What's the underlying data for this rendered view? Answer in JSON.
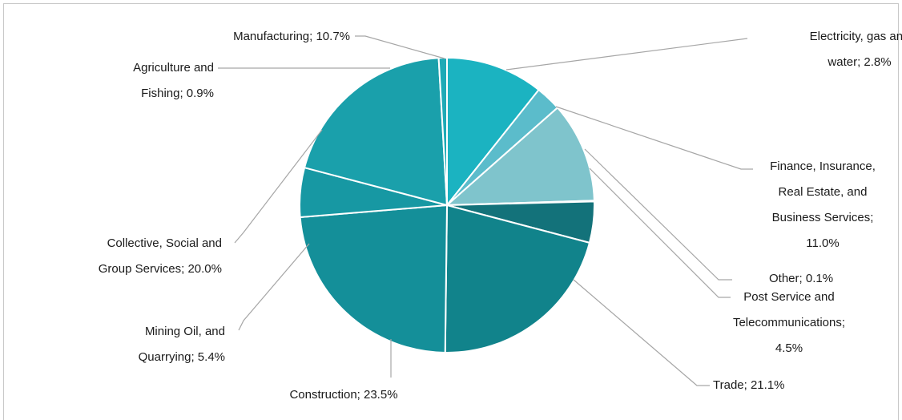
{
  "chart_data": {
    "type": "pie",
    "title": "",
    "slices": [
      {
        "name": "Manufacturing",
        "value": 10.7,
        "color": "#1bb3c1",
        "label_lines": [
          "Manufacturing; 10.7%"
        ]
      },
      {
        "name": "Electricity, gas and water",
        "value": 2.8,
        "color": "#5bbccb",
        "label_lines": [
          "Electricity, gas and",
          "water; 2.8%"
        ]
      },
      {
        "name": "Finance, Insurance, Real Estate, and Business Services",
        "value": 11.0,
        "color": "#7fc4cc",
        "label_lines": [
          "Finance, Insurance,",
          "Real Estate, and",
          "Business Services;",
          "11.0%"
        ]
      },
      {
        "name": "Other",
        "value": 0.1,
        "color": "#2a8f96",
        "label_lines": [
          "Other; 0.1%"
        ]
      },
      {
        "name": "Post Service and Telecommunications",
        "value": 4.5,
        "color": "#13727a",
        "label_lines": [
          "Post Service and",
          "Telecommunications;",
          "4.5%"
        ]
      },
      {
        "name": "Trade",
        "value": 21.1,
        "color": "#11838b",
        "label_lines": [
          "Trade; 21.1%"
        ]
      },
      {
        "name": "Construction",
        "value": 23.5,
        "color": "#148f99",
        "label_lines": [
          "Construction; 23.5%"
        ]
      },
      {
        "name": "Mining Oil, and Quarrying",
        "value": 5.4,
        "color": "#1798a3",
        "label_lines": [
          "Mining Oil, and",
          "Quarrying; 5.4%"
        ]
      },
      {
        "name": "Collective, Social and Group Services",
        "value": 20.0,
        "color": "#1aa0ab",
        "label_lines": [
          "Collective, Social and",
          "Group Services; 20.0%"
        ]
      },
      {
        "name": "Agriculture and Fishing",
        "value": 0.9,
        "color": "#1eaab6",
        "label_lines": [
          "Agriculture and",
          "Fishing; 0.9%"
        ]
      }
    ],
    "legend": "none",
    "start_direction": "top",
    "order": "clockwise"
  }
}
